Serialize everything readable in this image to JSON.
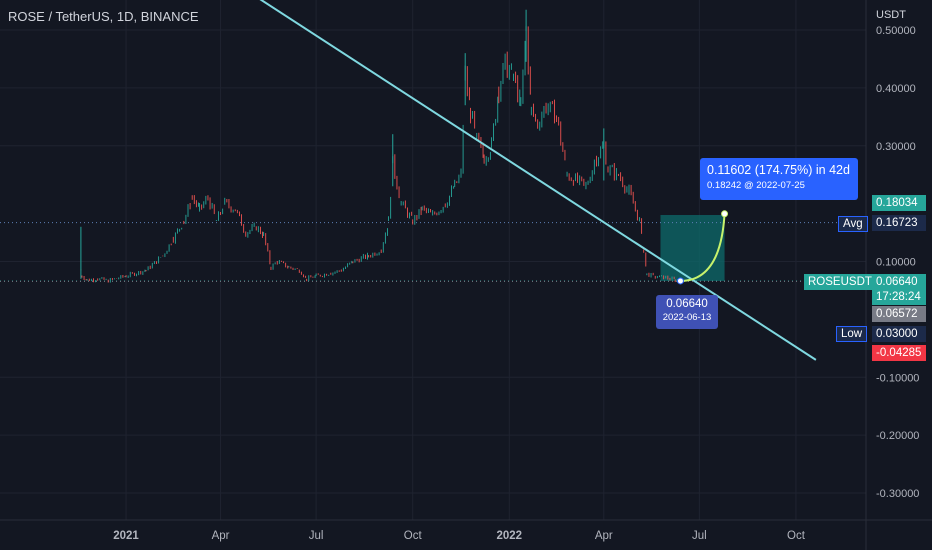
{
  "header": {
    "symbol": "ROSE / TetherUS",
    "interval": "1D",
    "exchange": "BINANCE",
    "currency": "USDT"
  },
  "chart_data": {
    "type": "line",
    "title": "ROSE / TetherUS, 1D, BINANCE",
    "ylabel": "USDT",
    "ylim": [
      -0.35,
      0.51
    ],
    "y_ticks": [
      "0.50000",
      "0.40000",
      "0.30000",
      "0.10000",
      "-0.10000",
      "-0.20000",
      "-0.30000"
    ],
    "x_ticks": [
      "2021",
      "Apr",
      "Jul",
      "Oct",
      "2022",
      "Apr",
      "Jul",
      "Oct"
    ],
    "series": [
      {
        "values": [
          [
            "2020-11-19",
            0.085
          ],
          [
            "2020-11-20",
            0.075
          ],
          [
            "2020-11-25",
            0.068
          ],
          [
            "2020-12-05",
            0.07
          ],
          [
            "2020-12-15",
            0.067
          ],
          [
            "2021-01-01",
            0.075
          ],
          [
            "2021-01-20",
            0.085
          ],
          [
            "2021-02-05",
            0.11
          ],
          [
            "2021-02-15",
            0.14
          ],
          [
            "2021-02-25",
            0.17
          ],
          [
            "2021-03-05",
            0.21
          ],
          [
            "2021-03-12",
            0.19
          ],
          [
            "2021-03-20",
            0.21
          ],
          [
            "2021-03-28",
            0.17
          ],
          [
            "2021-04-05",
            0.2
          ],
          [
            "2021-04-15",
            0.19
          ],
          [
            "2021-04-25",
            0.15
          ],
          [
            "2021-05-05",
            0.16
          ],
          [
            "2021-05-12",
            0.145
          ],
          [
            "2021-05-19",
            0.09
          ],
          [
            "2021-05-25",
            0.1
          ],
          [
            "2021-06-05",
            0.09
          ],
          [
            "2021-06-15",
            0.085
          ],
          [
            "2021-06-22",
            0.07
          ],
          [
            "2021-07-01",
            0.075
          ],
          [
            "2021-07-15",
            0.08
          ],
          [
            "2021-07-25",
            0.085
          ],
          [
            "2021-08-05",
            0.1
          ],
          [
            "2021-08-20",
            0.11
          ],
          [
            "2021-09-01",
            0.12
          ],
          [
            "2021-09-08",
            0.17
          ],
          [
            "2021-09-12",
            0.27
          ],
          [
            "2021-09-20",
            0.2
          ],
          [
            "2021-10-01",
            0.17
          ],
          [
            "2021-10-10",
            0.19
          ],
          [
            "2021-10-20",
            0.18
          ],
          [
            "2021-11-01",
            0.2
          ],
          [
            "2021-11-10",
            0.23
          ],
          [
            "2021-11-16",
            0.25
          ],
          [
            "2021-11-20",
            0.42
          ],
          [
            "2021-11-25",
            0.36
          ],
          [
            "2021-12-01",
            0.31
          ],
          [
            "2021-12-08",
            0.28
          ],
          [
            "2021-12-15",
            0.3
          ],
          [
            "2021-12-22",
            0.4
          ],
          [
            "2021-12-28",
            0.44
          ],
          [
            "2022-01-05",
            0.42
          ],
          [
            "2022-01-12",
            0.37
          ],
          [
            "2022-01-17",
            0.5
          ],
          [
            "2022-01-22",
            0.36
          ],
          [
            "2022-01-28",
            0.34
          ],
          [
            "2022-02-05",
            0.37
          ],
          [
            "2022-02-15",
            0.35
          ],
          [
            "2022-02-25",
            0.25
          ],
          [
            "2022-03-05",
            0.24
          ],
          [
            "2022-03-15",
            0.23
          ],
          [
            "2022-03-25",
            0.28
          ],
          [
            "2022-04-01",
            0.3
          ],
          [
            "2022-04-05",
            0.26
          ],
          [
            "2022-04-15",
            0.25
          ],
          [
            "2022-04-25",
            0.22
          ],
          [
            "2022-05-05",
            0.17
          ],
          [
            "2022-05-09",
            0.12
          ],
          [
            "2022-05-12",
            0.078
          ],
          [
            "2022-05-20",
            0.074
          ],
          [
            "2022-05-30",
            0.072
          ],
          [
            "2022-06-08",
            0.068
          ],
          [
            "2022-06-13",
            0.0664
          ]
        ]
      }
    ],
    "trendline": {
      "from": [
        "2020-12-01",
        0.74
      ],
      "to": [
        "2022-10-20",
        -0.07
      ],
      "color": "#7fd8e0"
    },
    "projection": {
      "from": [
        "2022-06-13",
        0.0664
      ],
      "to": [
        "2022-07-25",
        0.18242
      ],
      "color": "#c7f26c"
    },
    "target_zone": {
      "x_from": "2022-05-25",
      "x_to": "2022-07-25",
      "y_from": 0.0664,
      "y_to": 0.18034,
      "color": "#0d6b6b"
    },
    "stop_zone": {
      "x_from": "2022-05-25",
      "x_to": "2022-07-25",
      "y_from": -0.04285,
      "y_to": 0.0664,
      "color": "#5a1f25"
    },
    "h_levels": [
      0.1672,
      0.0664,
      0.0657
    ]
  },
  "annotations": {
    "projection_line1": "0.11602 (174.75%) in 42d",
    "projection_line2": "0.18242 @ 2022-07-25",
    "entry_price": "0.06640",
    "entry_date": "2022-06-13"
  },
  "price_labels": {
    "target": "0.18034",
    "avg_label": "Avg",
    "avg_value": "0.16723",
    "symbol_tag": "ROSEUSDT",
    "last_price": "0.06640",
    "countdown": "17:28:24",
    "prev_value": "0.06572",
    "low_label": "Low",
    "low_value": "0.03000",
    "stop_value": "-0.04285"
  },
  "colors": {
    "background": "#131722",
    "up_candle": "#26a69a",
    "down_candle": "#ef5350",
    "accent_blue": "#2962ff",
    "axis_text": "#b2b5be"
  }
}
